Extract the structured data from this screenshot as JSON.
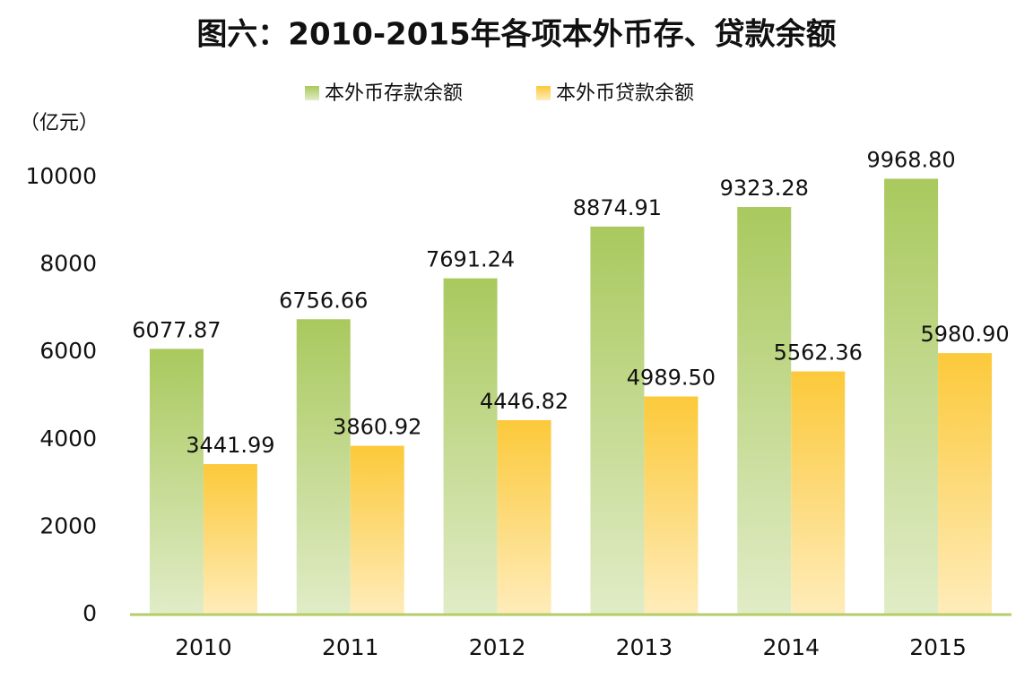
{
  "chart_data": {
    "type": "bar",
    "title": "图六：2010-2015年各项本外币存、贷款余额",
    "y_label": "（亿元）",
    "categories": [
      "2010",
      "2011",
      "2012",
      "2013",
      "2014",
      "2015"
    ],
    "series": [
      {
        "name": "本外币存款余额",
        "color": "#a9c95e",
        "values": [
          6077.87,
          6756.66,
          7691.24,
          8874.91,
          9323.28,
          9968.8
        ],
        "value_labels": [
          "6077.87",
          "6756.66",
          "7691.24",
          "8874.91",
          "9323.28",
          "9968.80"
        ]
      },
      {
        "name": "本外币贷款余额",
        "color": "#fcc93a",
        "values": [
          3441.99,
          3860.92,
          4446.82,
          4989.5,
          5562.36,
          5980.9
        ],
        "value_labels": [
          "3441.99",
          "3860.92",
          "4446.82",
          "4989.50",
          "5562.36",
          "5980.90"
        ]
      }
    ],
    "ylim": [
      0,
      10000
    ],
    "yticks": [
      0,
      2000,
      4000,
      6000,
      8000,
      10000
    ],
    "grid": false
  }
}
